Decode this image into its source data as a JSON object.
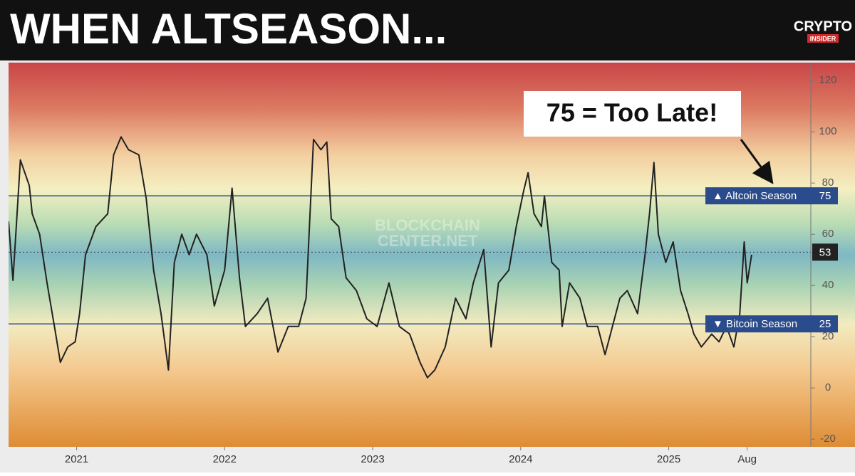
{
  "chart_data": {
    "type": "line",
    "title": "WHEN ALTSEASON...",
    "logo": [
      "CRYPTO",
      "INSIDER"
    ],
    "watermark": [
      "BLOCKCHAIN",
      "CENTER.NET"
    ],
    "annotation": "75 = Too Late!",
    "color": "#222222",
    "x": [
      2020.54,
      2020.57,
      2020.62,
      2020.68,
      2020.7,
      2020.75,
      2020.8,
      2020.85,
      2020.89,
      2020.94,
      2020.99,
      2021.02,
      2021.06,
      2021.13,
      2021.21,
      2021.25,
      2021.3,
      2021.35,
      2021.42,
      2021.47,
      2021.52,
      2021.57,
      2021.62,
      2021.66,
      2021.71,
      2021.76,
      2021.81,
      2021.88,
      2021.93,
      2022.0,
      2022.05,
      2022.1,
      2022.14,
      2022.22,
      2022.29,
      2022.36,
      2022.43,
      2022.5,
      2022.55,
      2022.6,
      2022.65,
      2022.69,
      2022.72,
      2022.77,
      2022.82,
      2022.89,
      2022.96,
      2023.03,
      2023.11,
      2023.18,
      2023.25,
      2023.32,
      2023.37,
      2023.42,
      2023.49,
      2023.56,
      2023.63,
      2023.68,
      2023.75,
      2023.8,
      2023.85,
      2023.92,
      2023.97,
      2024.02,
      2024.05,
      2024.09,
      2024.14,
      2024.16,
      2024.21,
      2024.26,
      2024.28,
      2024.33,
      2024.4,
      2024.45,
      2024.52,
      2024.57,
      2024.62,
      2024.67,
      2024.72,
      2024.79,
      2024.84,
      2024.87,
      2024.9,
      2024.93,
      2024.98,
      2025.03,
      2025.08,
      2025.13,
      2025.17,
      2025.22,
      2025.29,
      2025.34,
      2025.39,
      2025.44,
      2025.48,
      2025.51,
      2025.53,
      2025.56
    ],
    "values": [
      65,
      42,
      89,
      79,
      68,
      60,
      41,
      24,
      10,
      16,
      18,
      29,
      52,
      63,
      68,
      91,
      98,
      93,
      91,
      74,
      46,
      29,
      7,
      49,
      60,
      52,
      60,
      52,
      32,
      46,
      78,
      43,
      24,
      29,
      35,
      14,
      24,
      24,
      35,
      97,
      93,
      96,
      66,
      63,
      43,
      38,
      27,
      24,
      41,
      24,
      21,
      10,
      4,
      7,
      16,
      35,
      27,
      41,
      54,
      16,
      41,
      46,
      63,
      77,
      84,
      68,
      63,
      75,
      49,
      46,
      24,
      41,
      35,
      24,
      24,
      13,
      24,
      35,
      38,
      29,
      52,
      68,
      88,
      60,
      49,
      57,
      38,
      29,
      21,
      16,
      21,
      18,
      24,
      16,
      29,
      57,
      41,
      52
    ],
    "xlim": [
      2020.54,
      2025.96
    ],
    "xticks": [
      {
        "value": 2021,
        "label": "2021"
      },
      {
        "value": 2022,
        "label": "2022"
      },
      {
        "value": 2023,
        "label": "2023"
      },
      {
        "value": 2024,
        "label": "2024"
      },
      {
        "value": 2025,
        "label": "2025"
      },
      {
        "value": 2025.53,
        "label": "Aug"
      }
    ],
    "ylim": [
      -23,
      127
    ],
    "yticks": [
      -20,
      0,
      20,
      40,
      60,
      80,
      100,
      120
    ],
    "reference_lines": [
      {
        "value": 75,
        "label": "▲ Altcoin Season",
        "color": "#2b4c8c"
      },
      {
        "value": 25,
        "label": "▼ Bitcoin Season",
        "color": "#2b4c8c"
      }
    ],
    "current_value": 53
  }
}
